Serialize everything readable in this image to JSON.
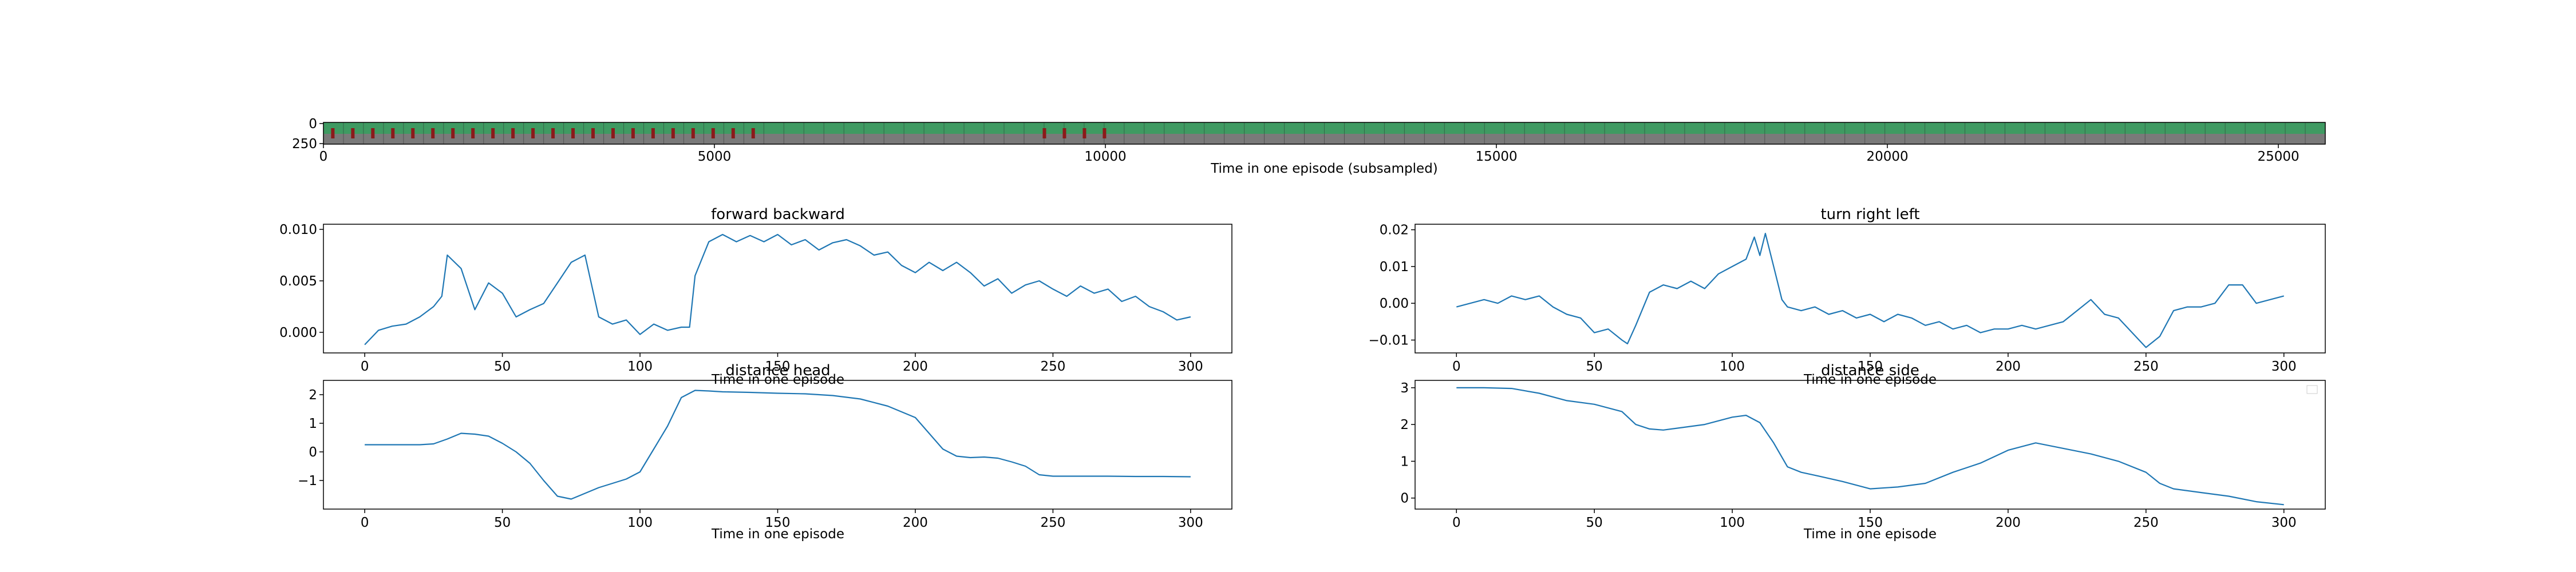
{
  "figure": {
    "strip": {
      "xlabel": "Time in one episode (subsampled)",
      "x_ticks": [
        0,
        5000,
        10000,
        15000,
        20000,
        25000
      ],
      "x_range": [
        0,
        25600
      ],
      "y_ticks": [
        0,
        250
      ],
      "frame_colors": {
        "arena_green": "#3f9a62",
        "floor_gray": "#7a7a7a",
        "marker_red": "#8b1a1a",
        "wall_dark": "#2e2e2e"
      },
      "red_marker_ranges": [
        [
          0,
          5700
        ],
        [
          9100,
          10000
        ]
      ]
    }
  },
  "chart_data": [
    {
      "type": "line",
      "title": "forward backward",
      "xlabel": "Time in one episode",
      "ylabel": "",
      "xlim": [
        -15,
        315
      ],
      "ylim": [
        -0.002,
        0.0105
      ],
      "x_ticks": [
        0,
        50,
        100,
        150,
        200,
        250,
        300
      ],
      "y_ticks": [
        0.0,
        0.005,
        0.01
      ],
      "y_tick_labels": [
        "0.000",
        "0.005",
        "0.010"
      ],
      "color": "#1f77b4",
      "x": [
        0,
        5,
        10,
        15,
        20,
        25,
        28,
        30,
        35,
        40,
        45,
        50,
        55,
        60,
        65,
        70,
        75,
        80,
        85,
        90,
        95,
        100,
        105,
        110,
        115,
        118,
        120,
        125,
        130,
        135,
        140,
        145,
        150,
        155,
        160,
        165,
        170,
        175,
        180,
        185,
        190,
        195,
        200,
        205,
        210,
        215,
        220,
        225,
        230,
        235,
        240,
        245,
        250,
        255,
        260,
        265,
        270,
        275,
        280,
        285,
        290,
        295,
        300
      ],
      "y": [
        -0.0012,
        0.0002,
        0.0006,
        0.0008,
        0.0015,
        0.0025,
        0.0035,
        0.0075,
        0.0062,
        0.0022,
        0.0048,
        0.0038,
        0.0015,
        0.0022,
        0.0028,
        0.0048,
        0.0068,
        0.0075,
        0.0015,
        0.0008,
        0.0012,
        -0.0002,
        0.0008,
        0.0002,
        0.0005,
        0.0005,
        0.0055,
        0.0088,
        0.0095,
        0.0088,
        0.0094,
        0.0088,
        0.0095,
        0.0085,
        0.009,
        0.008,
        0.0087,
        0.009,
        0.0084,
        0.0075,
        0.0078,
        0.0065,
        0.0058,
        0.0068,
        0.006,
        0.0068,
        0.0058,
        0.0045,
        0.0052,
        0.0038,
        0.0046,
        0.005,
        0.0042,
        0.0035,
        0.0045,
        0.0038,
        0.0042,
        0.003,
        0.0035,
        0.0025,
        0.002,
        0.0012,
        0.0015
      ]
    },
    {
      "type": "line",
      "title": "turn right left",
      "xlabel": "Time in one episode",
      "ylabel": "",
      "xlim": [
        -15,
        315
      ],
      "ylim": [
        -0.0135,
        0.0215
      ],
      "x_ticks": [
        0,
        50,
        100,
        150,
        200,
        250,
        300
      ],
      "y_ticks": [
        -0.01,
        0.0,
        0.01,
        0.02
      ],
      "y_tick_labels": [
        "−0.01",
        "0.00",
        "0.01",
        "0.02"
      ],
      "color": "#1f77b4",
      "x": [
        0,
        5,
        10,
        15,
        20,
        25,
        30,
        35,
        40,
        45,
        50,
        55,
        60,
        62,
        65,
        70,
        75,
        80,
        85,
        90,
        95,
        100,
        105,
        108,
        110,
        112,
        115,
        118,
        120,
        125,
        130,
        135,
        140,
        145,
        150,
        155,
        160,
        165,
        170,
        175,
        180,
        185,
        190,
        195,
        200,
        205,
        210,
        215,
        220,
        225,
        230,
        235,
        240,
        245,
        250,
        255,
        260,
        265,
        270,
        275,
        280,
        285,
        290,
        295,
        300
      ],
      "y": [
        -0.001,
        0.0,
        0.001,
        0.0,
        0.002,
        0.001,
        0.002,
        -0.001,
        -0.003,
        -0.004,
        -0.008,
        -0.007,
        -0.01,
        -0.011,
        -0.006,
        0.003,
        0.005,
        0.004,
        0.006,
        0.004,
        0.008,
        0.01,
        0.012,
        0.018,
        0.013,
        0.019,
        0.01,
        0.001,
        -0.001,
        -0.002,
        -0.001,
        -0.003,
        -0.002,
        -0.004,
        -0.003,
        -0.005,
        -0.003,
        -0.004,
        -0.006,
        -0.005,
        -0.007,
        -0.006,
        -0.008,
        -0.007,
        -0.007,
        -0.006,
        -0.007,
        -0.006,
        -0.005,
        -0.002,
        0.001,
        -0.003,
        -0.004,
        -0.008,
        -0.012,
        -0.009,
        -0.002,
        -0.001,
        -0.001,
        0.0,
        0.005,
        0.005,
        0.0,
        0.001,
        0.002
      ]
    },
    {
      "type": "line",
      "title": "distance head",
      "xlabel": "Time in one episode",
      "ylabel": "",
      "xlim": [
        -15,
        315
      ],
      "ylim": [
        -2.0,
        2.5
      ],
      "x_ticks": [
        0,
        50,
        100,
        150,
        200,
        250,
        300
      ],
      "y_ticks": [
        -1,
        0,
        1,
        2
      ],
      "y_tick_labels": [
        "−1",
        "0",
        "1",
        "2"
      ],
      "color": "#1f77b4",
      "x": [
        0,
        10,
        20,
        25,
        30,
        35,
        40,
        45,
        50,
        55,
        60,
        65,
        70,
        75,
        80,
        85,
        90,
        95,
        100,
        105,
        110,
        115,
        120,
        125,
        130,
        140,
        150,
        160,
        170,
        180,
        190,
        200,
        205,
        210,
        215,
        220,
        225,
        230,
        235,
        240,
        245,
        250,
        260,
        270,
        280,
        290,
        300
      ],
      "y": [
        0.25,
        0.25,
        0.25,
        0.28,
        0.45,
        0.65,
        0.62,
        0.55,
        0.3,
        0.0,
        -0.4,
        -1.0,
        -1.55,
        -1.65,
        -1.45,
        -1.25,
        -1.1,
        -0.95,
        -0.7,
        0.1,
        0.9,
        1.9,
        2.15,
        2.13,
        2.1,
        2.08,
        2.05,
        2.03,
        1.97,
        1.85,
        1.6,
        1.2,
        0.65,
        0.1,
        -0.15,
        -0.2,
        -0.18,
        -0.22,
        -0.35,
        -0.5,
        -0.8,
        -0.85,
        -0.85,
        -0.85,
        -0.86,
        -0.86,
        -0.87
      ]
    },
    {
      "type": "line",
      "title": "distance side",
      "xlabel": "Time in one episode",
      "ylabel": "",
      "xlim": [
        -15,
        315
      ],
      "ylim": [
        -0.3,
        3.2
      ],
      "x_ticks": [
        0,
        50,
        100,
        150,
        200,
        250,
        300
      ],
      "y_ticks": [
        0,
        1,
        2,
        3
      ],
      "y_tick_labels": [
        "0",
        "1",
        "2",
        "3"
      ],
      "color": "#1f77b4",
      "x": [
        0,
        10,
        20,
        30,
        40,
        50,
        60,
        65,
        70,
        75,
        80,
        90,
        100,
        105,
        110,
        115,
        120,
        125,
        130,
        140,
        150,
        160,
        170,
        180,
        190,
        200,
        210,
        220,
        230,
        240,
        250,
        255,
        260,
        270,
        280,
        290,
        300
      ],
      "y": [
        3.0,
        3.0,
        2.98,
        2.85,
        2.65,
        2.55,
        2.35,
        2.0,
        1.88,
        1.85,
        1.9,
        2.0,
        2.2,
        2.25,
        2.05,
        1.5,
        0.85,
        0.7,
        0.62,
        0.45,
        0.25,
        0.3,
        0.4,
        0.7,
        0.95,
        1.3,
        1.5,
        1.35,
        1.2,
        1.0,
        0.7,
        0.4,
        0.25,
        0.15,
        0.05,
        -0.1,
        -0.18
      ]
    }
  ]
}
